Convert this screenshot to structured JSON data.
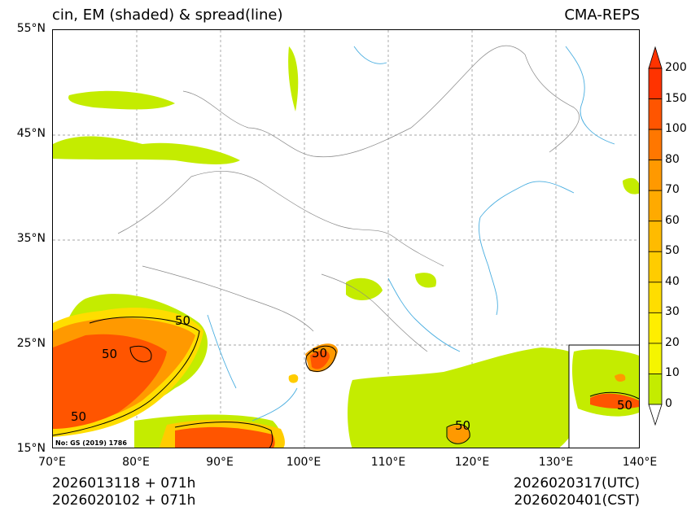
{
  "header": {
    "title": "cin, EM (shaded) & spread(line)",
    "model": "CMA-REPS"
  },
  "axes": {
    "lat_labels": [
      "55°N",
      "45°N",
      "35°N",
      "25°N",
      "15°N"
    ],
    "lon_labels": [
      "70°E",
      "80°E",
      "90°E",
      "100°E",
      "110°E",
      "120°E",
      "130°E",
      "140°E"
    ]
  },
  "colorbar": {
    "levels": [
      "200",
      "150",
      "100",
      "80",
      "70",
      "60",
      "50",
      "40",
      "30",
      "20",
      "10",
      "0"
    ],
    "colors": [
      "#ff3300",
      "#ff5500",
      "#ff7700",
      "#ff9900",
      "#ffaa00",
      "#ffbb00",
      "#ffcc00",
      "#ffdd00",
      "#ffee00",
      "#f5f500",
      "#c4ec00"
    ]
  },
  "contour_labels": [
    "50",
    "50",
    "50",
    "50",
    "50",
    "50"
  ],
  "credit": "No: GS (2019) 1786",
  "footer": {
    "init_utc": "2026013118  +  071h",
    "init_cst": "2026020102  +  071h",
    "valid_utc": "2026020317(UTC)",
    "valid_cst": "2026020401(CST)"
  }
}
